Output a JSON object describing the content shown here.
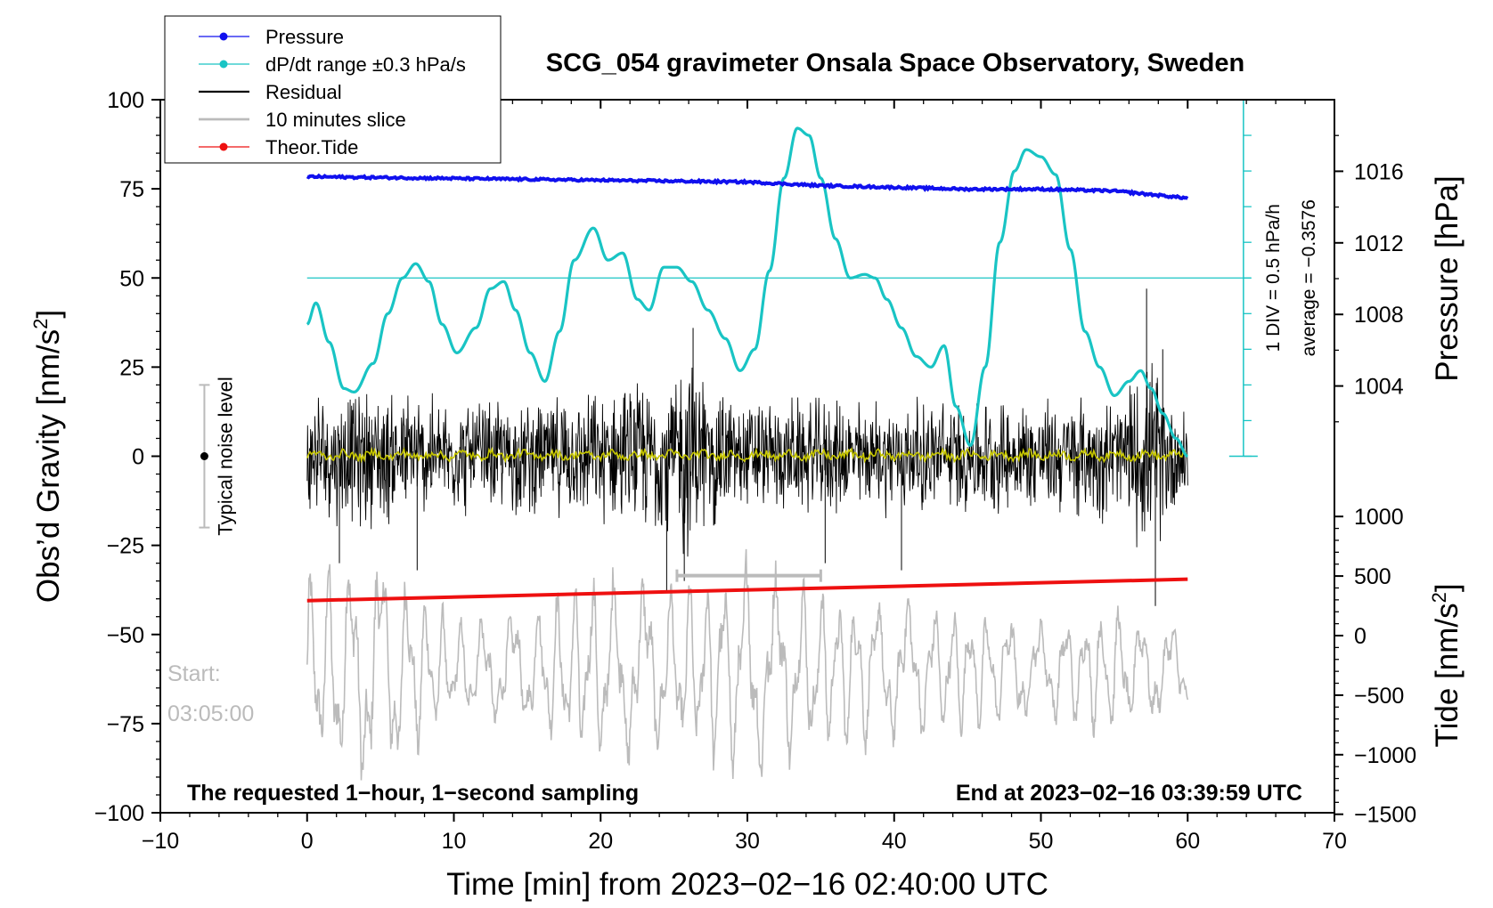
{
  "chart_data": {
    "type": "line",
    "title": "SCG_054 gravimeter Onsala Space Observatory, Sweden",
    "xlabel": "Time [min] from 2023−02−16 02:40:00 UTC",
    "ylabel_left": "Obs’d Gravity [nm/s",
    "ylabel_left_sup": "2",
    "ylabel_left_end": "]",
    "ylabel_right_pressure": "Pressure [hPa]",
    "ylabel_right_tide": "Tide [nm/s",
    "ylabel_right_tide_sup": "2",
    "ylabel_right_tide_end": "]",
    "xlim": [
      -10,
      70
    ],
    "ylim_left": [
      -100,
      100
    ],
    "pressure_range": [
      1000,
      1020
    ],
    "tide_range": [
      -1500,
      1500
    ],
    "x_ticks": [
      "−10",
      "0",
      "10",
      "20",
      "30",
      "40",
      "50",
      "60",
      "70"
    ],
    "x_tick_values": [
      -10,
      0,
      10,
      20,
      30,
      40,
      50,
      60,
      70
    ],
    "y_left_ticks": [
      "100",
      "75",
      "50",
      "25",
      "0",
      "−25",
      "−50",
      "−75",
      "−100"
    ],
    "y_left_tick_values": [
      100,
      75,
      50,
      25,
      0,
      -25,
      -50,
      -75,
      -100
    ],
    "pressure_ticks": [
      "1016",
      "1012",
      "1008",
      "1004"
    ],
    "pressure_tick_values": [
      1016,
      1012,
      1008,
      1004
    ],
    "tide_ticks": [
      "1000",
      "500",
      "0",
      "−500",
      "−1000",
      "−1500"
    ],
    "tide_tick_values": [
      1000,
      500,
      0,
      -500,
      -1000,
      -1500
    ],
    "legend": [
      {
        "label": "Pressure",
        "color": "#1010ee",
        "marker": true
      },
      {
        "label": "dP/dt range ±0.3 hPa/s",
        "color": "#19c4c4",
        "marker": true
      },
      {
        "label": "Residual",
        "color": "#000000",
        "marker": false
      },
      {
        "label": "10 minutes slice",
        "color": "#bbbbbb",
        "marker": false
      },
      {
        "label": "Theor.Tide",
        "color": "#ee1010",
        "marker": true
      }
    ],
    "series": {
      "pressure": {
        "name": "Pressure",
        "color": "#1010ee",
        "x": [
          0,
          10,
          20,
          30,
          35,
          40,
          45,
          50,
          55,
          60
        ],
        "values": [
          1015.7,
          1015.6,
          1015.5,
          1015.4,
          1015.2,
          1015.1,
          1015.0,
          1015.0,
          1014.9,
          1014.5
        ]
      },
      "dpdt": {
        "name": "dP/dt range ±0.3 hPa/s",
        "color": "#19c4c4",
        "x": [
          0,
          0.6,
          1.5,
          2.5,
          3.2,
          4.5,
          5.5,
          6.5,
          7.4,
          8.3,
          9.2,
          10.2,
          11.5,
          12.5,
          13.4,
          14.2,
          15.2,
          16.2,
          17.2,
          18.2,
          19.5,
          20.5,
          21.5,
          22.5,
          23.3,
          24.3,
          25.2,
          26.2,
          27.3,
          28.5,
          29.5,
          30.5,
          31.5,
          32.5,
          33.4,
          34.2,
          35,
          36,
          37,
          38,
          38.7,
          39.5,
          40.5,
          41.5,
          42.5,
          43.4,
          44.2,
          45.2,
          46.2,
          47.2,
          48.2,
          49,
          50,
          51,
          52,
          53,
          54,
          55,
          56,
          56.8,
          57.5,
          58.3,
          59.2,
          60
        ],
        "values": [
          37,
          43,
          32,
          19,
          18,
          26,
          40,
          50,
          54,
          49,
          37,
          29,
          36,
          47,
          49,
          41,
          29,
          21,
          35,
          55,
          64,
          55,
          57,
          44,
          41,
          53,
          53,
          49,
          41,
          33,
          24,
          30,
          52,
          78,
          92,
          90,
          78,
          61,
          50,
          51,
          50,
          44,
          36,
          28,
          25,
          31,
          14,
          3,
          25,
          60,
          80,
          86,
          84,
          79,
          58,
          35,
          25,
          17,
          21,
          24,
          19,
          12,
          5,
          0
        ]
      },
      "residual": {
        "name": "Residual",
        "color": "#000000",
        "envelope_x": [
          0,
          5,
          10,
          15,
          20,
          24,
          26,
          28,
          30,
          35,
          40,
          45,
          50,
          55,
          57.5,
          60
        ],
        "envelope_values": [
          20,
          22,
          18,
          18,
          20,
          25,
          33,
          22,
          18,
          18,
          18,
          18,
          18,
          20,
          30,
          15
        ]
      },
      "residual_smooth": {
        "name": "Residual (smoothed)",
        "color": "#c8c800",
        "values": [
          0,
          0
        ]
      },
      "slice": {
        "name": "10 minutes slice",
        "color": "#bbbbbb",
        "x_tide_units": [
          0,
          60
        ],
        "center": -60,
        "envelope_x": [
          0,
          5,
          10,
          15,
          20,
          25,
          30,
          35,
          40,
          45,
          50,
          55,
          60
        ],
        "envelope_values": [
          25,
          30,
          12,
          15,
          25,
          20,
          28,
          20,
          18,
          15,
          12,
          16,
          10
        ]
      },
      "tide": {
        "name": "Theor.Tide",
        "color": "#ee1010",
        "x": [
          0,
          60
        ],
        "values": [
          -40.5,
          -34.5
        ]
      }
    },
    "reference_line": {
      "value": 50,
      "color": "#19c4c4"
    },
    "bracket": {
      "x": [
        25.2,
        35
      ],
      "y": -33.5,
      "color": "#bbbbbb"
    },
    "noise_bar": {
      "x": -7,
      "top": 20,
      "bottom": -20,
      "center": 0,
      "label": "Typical noise level"
    },
    "scale_note": {
      "line1": "1 DIV = 0.5 hPa/h",
      "line2": "average = −0.3576",
      "bar_x": 63.8,
      "bar_top": 100,
      "bar_bottom": 0,
      "step": 10
    },
    "annotations": {
      "start_label": "Start:",
      "start_time": "03:05:00",
      "bottom_left": "The requested 1−hour, 1−second sampling",
      "bottom_right": "End at 2023−02−16 03:39:59 UTC"
    }
  }
}
